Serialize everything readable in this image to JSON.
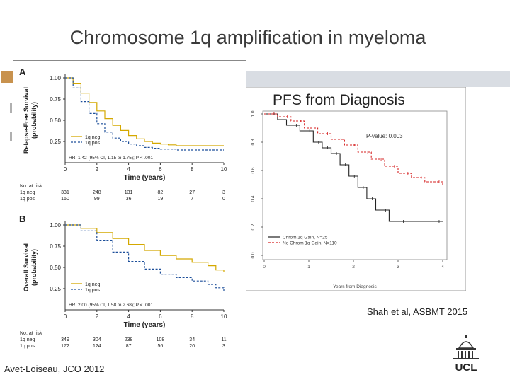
{
  "title": "Chromosome 1q amplification in myeloma",
  "citations": {
    "left": "Avet-Loiseau, JCO 2012",
    "right": "Shah et al, ASBMT 2015"
  },
  "logo_text": "UCL",
  "colors": {
    "neg": "#d4a800",
    "pos": "#1d4f9a",
    "black": "#222222",
    "red": "#d62020"
  },
  "chart_data": [
    {
      "id": "A",
      "type": "line",
      "panel_label": "A",
      "ylabel_lines": [
        "Relapse-Free Survival",
        "(probability)"
      ],
      "xlabel": "Time (years)",
      "xlim": [
        0,
        10
      ],
      "ylim": [
        0,
        1
      ],
      "xticks": [
        "0",
        "2",
        "4",
        "6",
        "8",
        "10"
      ],
      "yticks": [
        "0.25",
        "0.50",
        "0.75",
        "1.00"
      ],
      "legend": [
        "1q neg",
        "1q pos"
      ],
      "hr_text": "HR, 1.42 (95% CI, 1.15 to 1.75); P < .001",
      "series": [
        {
          "name": "1q neg",
          "color_key": "neg",
          "style": "solid",
          "x": [
            0,
            0.5,
            1,
            1.5,
            2,
            2.5,
            3,
            3.5,
            4,
            4.5,
            5,
            5.5,
            6,
            6.5,
            7,
            8,
            10
          ],
          "y": [
            1.0,
            0.93,
            0.82,
            0.71,
            0.61,
            0.52,
            0.44,
            0.38,
            0.32,
            0.28,
            0.25,
            0.23,
            0.22,
            0.21,
            0.2,
            0.2,
            0.2
          ]
        },
        {
          "name": "1q pos",
          "color_key": "pos",
          "style": "dashed",
          "x": [
            0,
            0.5,
            1,
            1.5,
            2,
            2.5,
            3,
            3.5,
            4,
            4.5,
            5,
            5.5,
            6,
            6.5,
            7,
            8,
            10
          ],
          "y": [
            1.0,
            0.88,
            0.72,
            0.58,
            0.46,
            0.36,
            0.29,
            0.25,
            0.22,
            0.2,
            0.18,
            0.17,
            0.16,
            0.16,
            0.15,
            0.15,
            0.15
          ]
        }
      ],
      "risk": {
        "heading": "No. at risk",
        "rows": [
          {
            "label": "1q neg",
            "values": [
              "331",
              "248",
              "131",
              "82",
              "27",
              "3"
            ]
          },
          {
            "label": "1q pos",
            "values": [
              "160",
              "99",
              "36",
              "19",
              "7",
              "0"
            ]
          }
        ]
      }
    },
    {
      "id": "B",
      "type": "line",
      "panel_label": "B",
      "ylabel_lines": [
        "Overall Survival",
        "(probability)"
      ],
      "xlabel": "Time (years)",
      "xlim": [
        0,
        10
      ],
      "ylim": [
        0,
        1
      ],
      "xticks": [
        "0",
        "2",
        "4",
        "6",
        "8",
        "10"
      ],
      "yticks": [
        "0.25",
        "0.50",
        "0.75",
        "1.00"
      ],
      "legend": [
        "1q neg",
        "1q pos"
      ],
      "hr_text": "HR, 2.00 (95% CI, 1.58 to 2.68); P < .001",
      "series": [
        {
          "name": "1q neg",
          "color_key": "neg",
          "style": "solid",
          "x": [
            0,
            1,
            2,
            3,
            4,
            5,
            6,
            7,
            8,
            9,
            9.5,
            10
          ],
          "y": [
            1.0,
            0.96,
            0.91,
            0.84,
            0.77,
            0.7,
            0.64,
            0.6,
            0.56,
            0.52,
            0.47,
            0.45
          ]
        },
        {
          "name": "1q pos",
          "color_key": "pos",
          "style": "dashed",
          "x": [
            0,
            1,
            2,
            3,
            4,
            5,
            6,
            7,
            8,
            9,
            9.5,
            10
          ],
          "y": [
            1.0,
            0.93,
            0.82,
            0.68,
            0.57,
            0.48,
            0.42,
            0.38,
            0.34,
            0.3,
            0.26,
            0.22
          ]
        }
      ],
      "risk": {
        "heading": "No. at risk",
        "rows": [
          {
            "label": "1q neg",
            "values": [
              "349",
              "304",
              "238",
              "108",
              "34",
              "11"
            ]
          },
          {
            "label": "1q pos",
            "values": [
              "172",
              "124",
              "87",
              "56",
              "20",
              "3"
            ]
          }
        ]
      }
    },
    {
      "id": "C",
      "type": "line",
      "title": "PFS from Diagnosis",
      "xlabel": "Years from Diagnosis",
      "xlim": [
        0,
        4
      ],
      "ylim": [
        0,
        1
      ],
      "xticks": [
        "0",
        "1",
        "2",
        "3",
        "4"
      ],
      "yticks": [
        "0.0",
        "0.2",
        "0.4",
        "0.6",
        "0.8",
        "1.0"
      ],
      "pvalue": "P-value: 0.003",
      "legend": [
        "Chrom 1q Gain, N=25",
        "No Chrom 1q Gain, N=110"
      ],
      "series": [
        {
          "name": "Chrom 1q Gain, N=25",
          "color_key": "black",
          "style": "solid",
          "x": [
            0,
            0.3,
            0.5,
            0.8,
            1.1,
            1.3,
            1.5,
            1.7,
            1.9,
            2.1,
            2.3,
            2.5,
            2.8,
            3.2,
            4.0
          ],
          "y": [
            1.0,
            0.96,
            0.92,
            0.88,
            0.8,
            0.76,
            0.72,
            0.64,
            0.56,
            0.48,
            0.4,
            0.32,
            0.24,
            0.24,
            0.24
          ]
        },
        {
          "name": "No Chrom 1q Gain, N=110",
          "color_key": "red",
          "style": "dashed",
          "x": [
            0,
            0.3,
            0.6,
            0.9,
            1.2,
            1.5,
            1.8,
            2.1,
            2.4,
            2.7,
            3.0,
            3.3,
            3.6,
            4.0
          ],
          "y": [
            1.0,
            0.98,
            0.95,
            0.9,
            0.86,
            0.82,
            0.78,
            0.73,
            0.68,
            0.63,
            0.58,
            0.55,
            0.52,
            0.5
          ]
        }
      ]
    }
  ]
}
